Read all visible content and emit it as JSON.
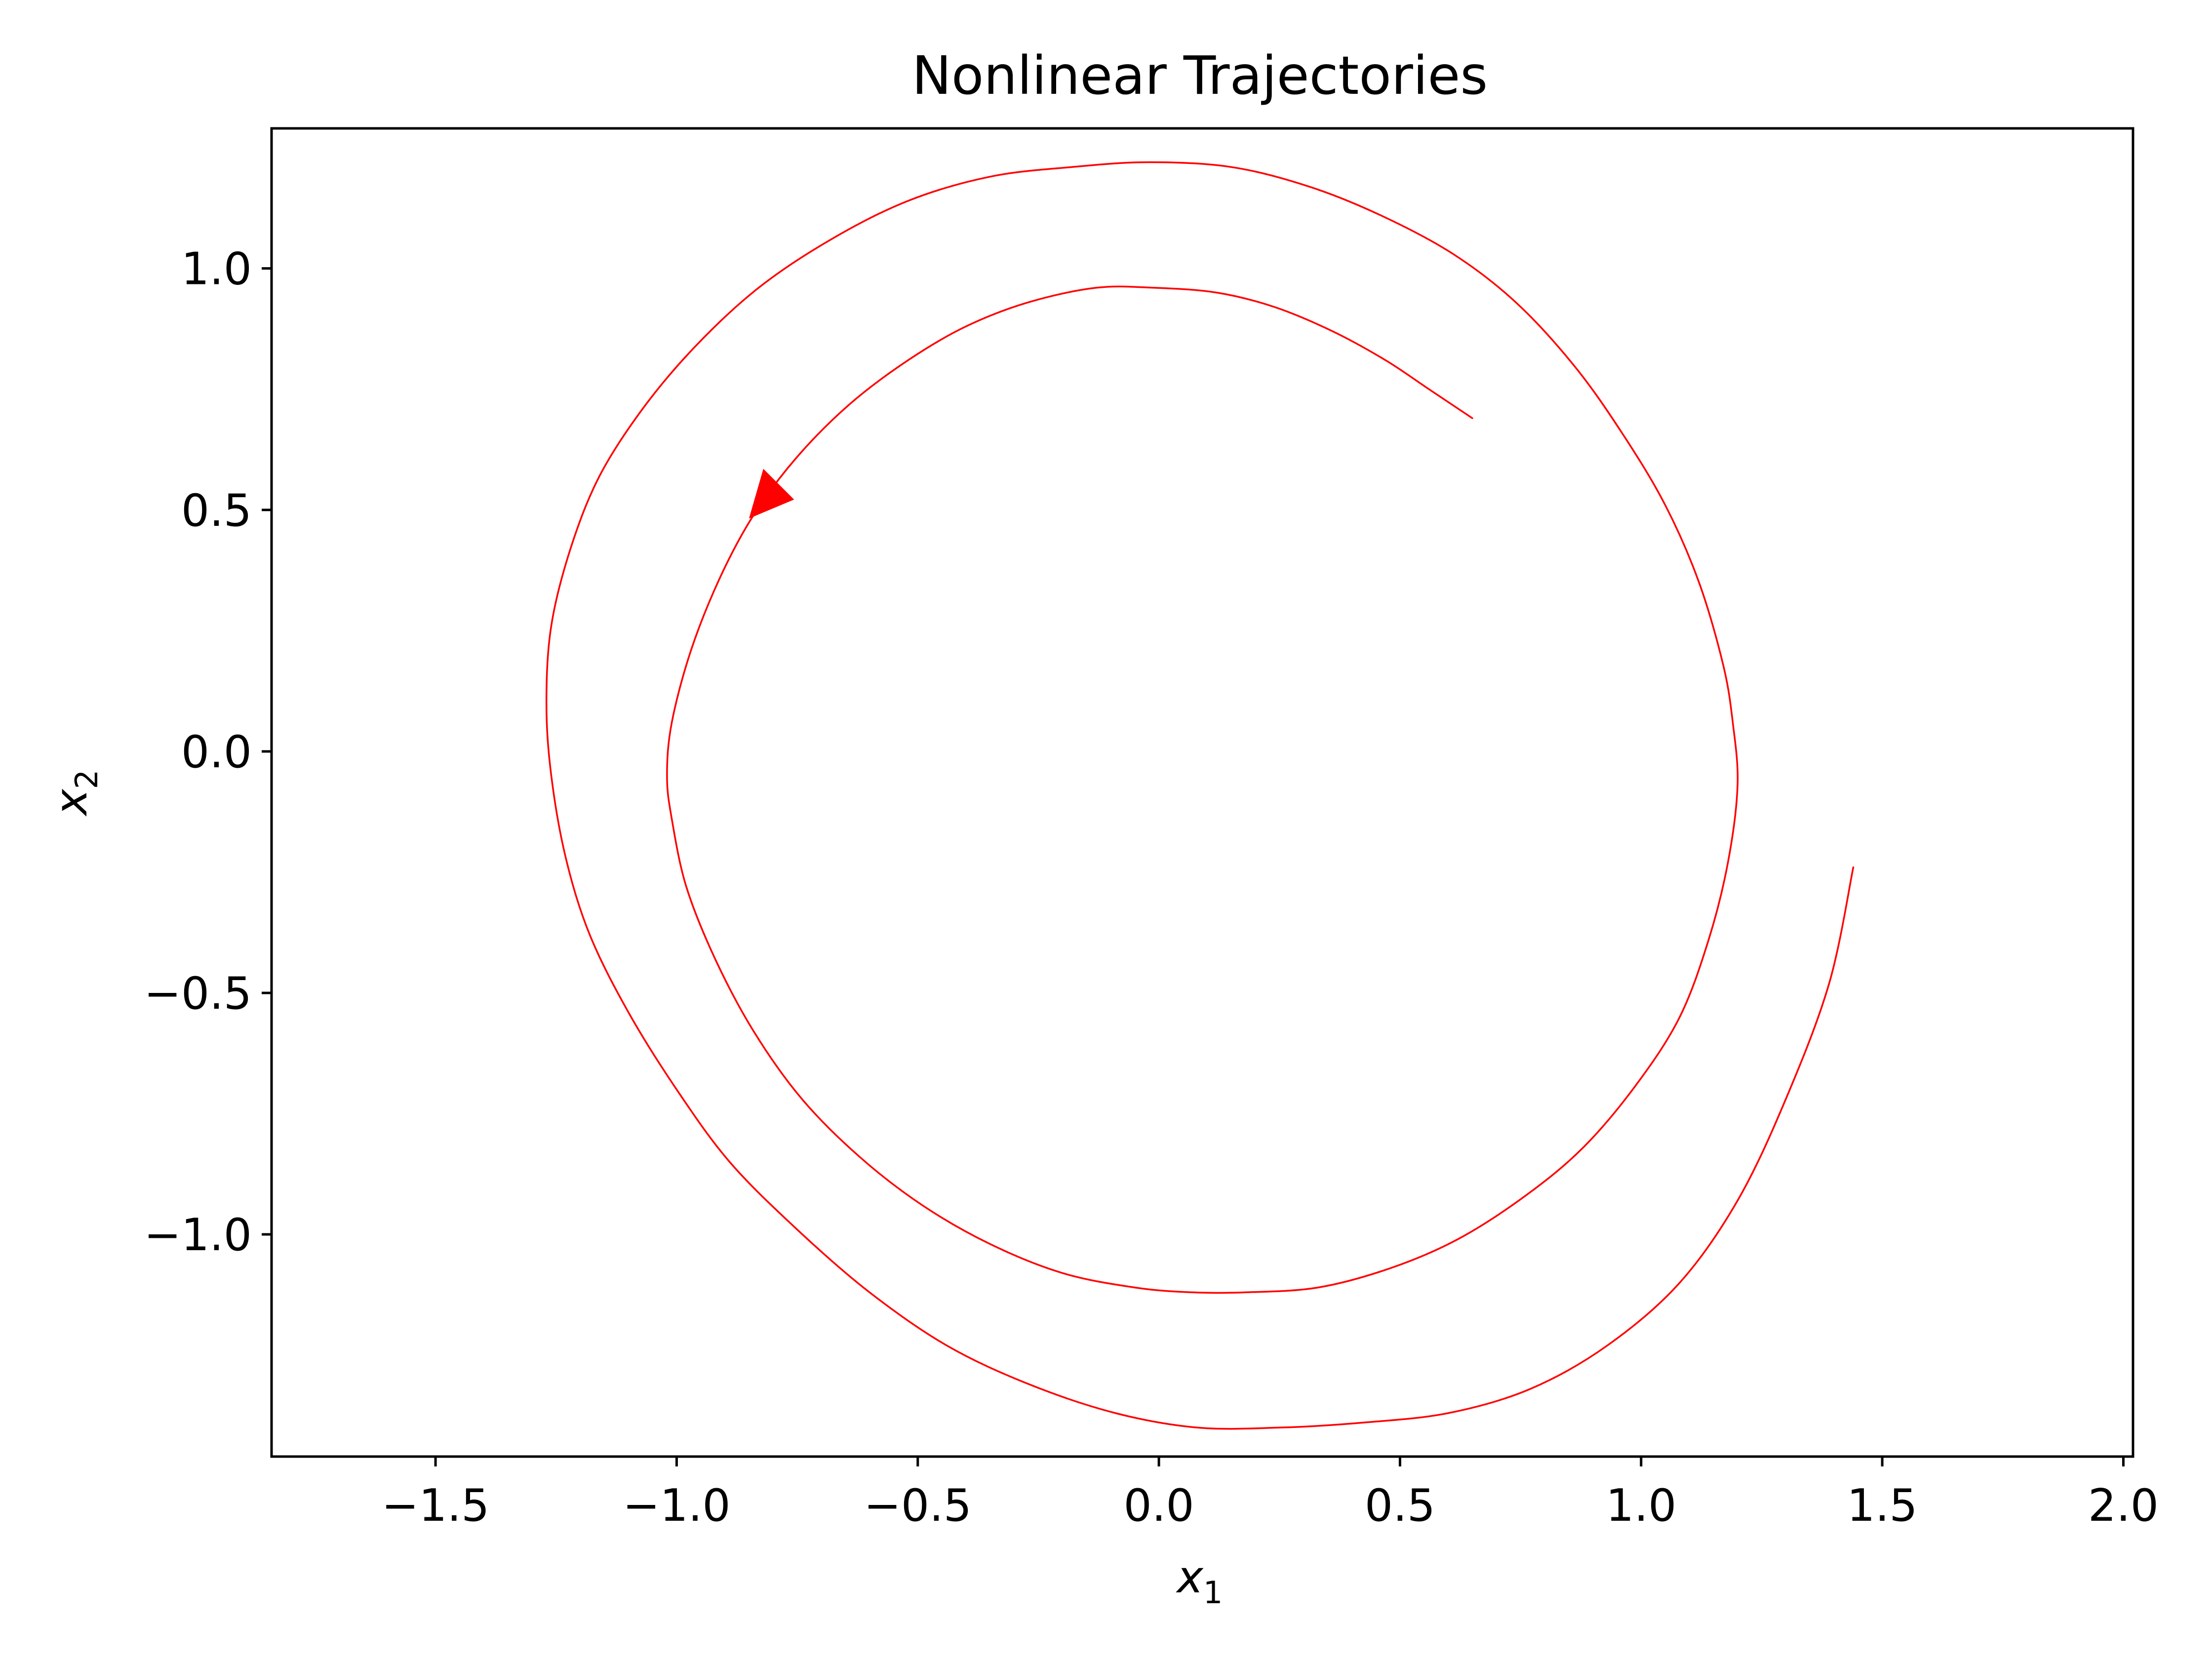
{
  "chart_data": {
    "type": "line",
    "title": "Nonlinear Trajectories",
    "xlabel": "x",
    "xlabel_subscript": "1",
    "ylabel": "x",
    "ylabel_subscript": "2",
    "xlim": [
      -1.84,
      2.02
    ],
    "ylim": [
      -1.46,
      1.29
    ],
    "x_ticks": [
      -1.5,
      -1.0,
      -0.5,
      0.0,
      0.5,
      1.0,
      1.5,
      2.0
    ],
    "x_tick_labels": [
      "−1.5",
      "−1.0",
      "−0.5",
      "0.0",
      "0.5",
      "1.0",
      "1.5",
      "2.0"
    ],
    "y_ticks": [
      -1.0,
      -0.5,
      0.0,
      0.5,
      1.0
    ],
    "y_tick_labels": [
      "−1.0",
      "−0.5",
      "0.0",
      "0.5",
      "1.0"
    ],
    "grid": false,
    "series": [
      {
        "color": "#ff0000",
        "x": [
          1.44,
          1.39,
          1.3,
          1.2,
          1.08,
          0.93,
          0.77,
          0.6,
          0.42,
          0.25,
          0.08,
          -0.09,
          -0.27,
          -0.44,
          -0.6,
          -0.75,
          -0.89,
          -1.0,
          -1.1,
          -1.18,
          -1.23,
          -1.26,
          -1.27,
          -1.26,
          -1.22,
          -1.16,
          -1.07,
          -0.96,
          -0.83,
          -0.68,
          -0.52,
          -0.35,
          -0.18,
          -0.02,
          0.15,
          0.31,
          0.46,
          0.61,
          0.74,
          0.86,
          0.96,
          1.05,
          1.12,
          1.17,
          1.19,
          1.2,
          1.18,
          1.14,
          1.08,
          0.99,
          0.88,
          0.76,
          0.62,
          0.48,
          0.33,
          0.18,
          0.07,
          -0.05,
          -0.2,
          -0.35,
          -0.49,
          -0.62,
          -0.74,
          -0.84,
          -0.92,
          -0.98,
          -1.01,
          -1.02,
          -1.01,
          -0.97,
          -0.91,
          -0.84,
          -0.75,
          -0.64,
          -0.52,
          -0.4,
          -0.27,
          -0.13,
          -0.01,
          0.12,
          0.24,
          0.36,
          0.47,
          0.56,
          0.65
        ],
        "y": [
          -0.24,
          -0.48,
          -0.72,
          -0.93,
          -1.1,
          -1.23,
          -1.32,
          -1.37,
          -1.39,
          -1.4,
          -1.4,
          -1.37,
          -1.31,
          -1.23,
          -1.12,
          -0.99,
          -0.85,
          -0.7,
          -0.54,
          -0.38,
          -0.22,
          -0.05,
          0.1,
          0.26,
          0.42,
          0.57,
          0.71,
          0.84,
          0.96,
          1.06,
          1.14,
          1.19,
          1.21,
          1.22,
          1.21,
          1.17,
          1.11,
          1.03,
          0.93,
          0.8,
          0.66,
          0.51,
          0.35,
          0.18,
          0.06,
          -0.07,
          -0.23,
          -0.39,
          -0.55,
          -0.69,
          -0.82,
          -0.92,
          -1.01,
          -1.07,
          -1.11,
          -1.12,
          -1.12,
          -1.11,
          -1.08,
          -1.02,
          -0.94,
          -0.84,
          -0.72,
          -0.58,
          -0.43,
          -0.28,
          -0.14,
          -0.05,
          0.06,
          0.21,
          0.36,
          0.49,
          0.61,
          0.72,
          0.81,
          0.88,
          0.93,
          0.96,
          0.96,
          0.95,
          0.92,
          0.87,
          0.81,
          0.75,
          0.69
        ]
      }
    ],
    "annotations": [
      {
        "type": "arrow",
        "x": -0.83,
        "y": 0.53,
        "color": "#ff0000"
      }
    ]
  }
}
